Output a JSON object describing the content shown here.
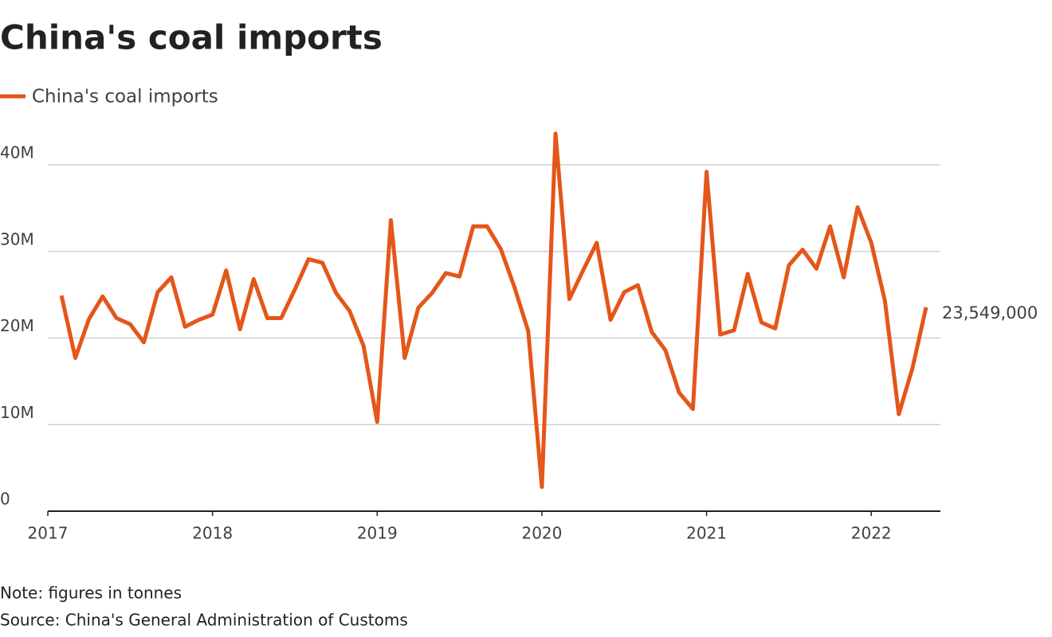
{
  "chart_data": {
    "type": "line",
    "title": "China's coal imports",
    "note": "Note: figures in tonnes",
    "source": "Source: China's General Administration of Customs",
    "x": [
      2017.083,
      2017.167,
      2017.25,
      2017.333,
      2017.417,
      2017.5,
      2017.583,
      2017.667,
      2017.75,
      2017.833,
      2017.917,
      2018,
      2018.083,
      2018.167,
      2018.25,
      2018.333,
      2018.417,
      2018.5,
      2018.583,
      2018.667,
      2018.75,
      2018.833,
      2018.917,
      2019,
      2019.083,
      2019.167,
      2019.25,
      2019.333,
      2019.417,
      2019.5,
      2019.583,
      2019.667,
      2019.75,
      2019.833,
      2019.917,
      2020,
      2020.083,
      2020.167,
      2020.25,
      2020.333,
      2020.417,
      2020.5,
      2020.583,
      2020.667,
      2020.75,
      2020.833,
      2020.917,
      2021,
      2021.083,
      2021.167,
      2021.25,
      2021.333,
      2021.417,
      2021.5,
      2021.583,
      2021.667,
      2021.75,
      2021.833,
      2021.917,
      2022,
      2022.083,
      2022.167,
      2022.25,
      2022.333
    ],
    "series": [
      {
        "name": "China's coal imports",
        "color": "#e4561a",
        "values": [
          24900000,
          17700000,
          22200000,
          24800000,
          22300000,
          21600000,
          19500000,
          25300000,
          27000000,
          21300000,
          22100000,
          22700000,
          27800000,
          21000000,
          26800000,
          22300000,
          22300000,
          25600000,
          29100000,
          28700000,
          25200000,
          23100000,
          19100000,
          10300000,
          33600000,
          17700000,
          23500000,
          25200000,
          27500000,
          27100000,
          32900000,
          32900000,
          30300000,
          25900000,
          20800000,
          2800000,
          43600000,
          24500000,
          27800000,
          31000000,
          22100000,
          25300000,
          26100000,
          20700000,
          18600000,
          13700000,
          11800000,
          39200000,
          20400000,
          20900000,
          27400000,
          21800000,
          21100000,
          28400000,
          30200000,
          28000000,
          32900000,
          27000000,
          35100000,
          31000000,
          24300000,
          11200000,
          16500000,
          23549000
        ],
        "value_labels": [
          null,
          null,
          null,
          null,
          null,
          null,
          null,
          null,
          null,
          null,
          null,
          null,
          null,
          null,
          null,
          null,
          null,
          null,
          null,
          null,
          null,
          null,
          null,
          null,
          null,
          null,
          null,
          null,
          null,
          null,
          null,
          null,
          null,
          null,
          null,
          null,
          null,
          null,
          null,
          null,
          null,
          null,
          null,
          null,
          null,
          null,
          null,
          null,
          null,
          null,
          null,
          null,
          null,
          null,
          null,
          null,
          null,
          null,
          null,
          null,
          null,
          null,
          null,
          "23,549,000"
        ]
      }
    ],
    "xlim": [
      2017,
      2022.42
    ],
    "xticks": [
      2017,
      2018,
      2019,
      2020,
      2021,
      2022
    ],
    "ylim": [
      0,
      44000000
    ],
    "yticks": [
      0,
      {
        "value": 10000000,
        "label": "10M"
      },
      {
        "value": 20000000,
        "label": "20M"
      },
      {
        "value": 30000000,
        "label": "30M"
      },
      {
        "value": 40000000,
        "label": "40M"
      }
    ],
    "grid": true
  }
}
